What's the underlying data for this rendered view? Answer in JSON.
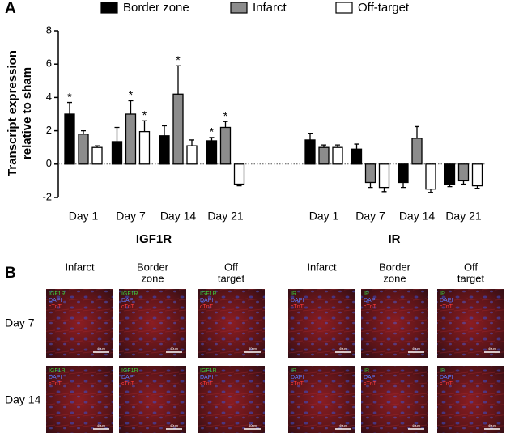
{
  "chart_data": {
    "type": "bar",
    "panel_label": "A",
    "ylabel": [
      "Transcript expression",
      "relative to sham"
    ],
    "categories": [
      "Day 1",
      "Day 7",
      "Day 14",
      "Day 21",
      "Day 1",
      "Day 7",
      "Day 14",
      "Day 21"
    ],
    "group_labels": [
      "IGF1R",
      "IR"
    ],
    "series": [
      {
        "name": "Border zone",
        "color": "#000000",
        "values": [
          3.0,
          1.35,
          1.7,
          1.4,
          1.45,
          0.9,
          -1.1,
          -1.2
        ],
        "errors": [
          0.7,
          0.85,
          0.6,
          0.2,
          0.4,
          0.3,
          0.3,
          0.15
        ],
        "significant": [
          true,
          false,
          false,
          true,
          false,
          false,
          false,
          false
        ]
      },
      {
        "name": "Infarct",
        "color": "#8c8c8c",
        "values": [
          1.8,
          3.0,
          4.2,
          2.2,
          1.0,
          -1.1,
          1.55,
          -1.0
        ],
        "errors": [
          0.2,
          0.8,
          1.7,
          0.35,
          0.15,
          0.3,
          0.7,
          0.2
        ],
        "significant": [
          false,
          true,
          true,
          true,
          false,
          false,
          false,
          false
        ]
      },
      {
        "name": "Off-target",
        "color": "#ffffff",
        "values": [
          1.0,
          1.95,
          1.1,
          -1.2,
          1.0,
          -1.4,
          -1.5,
          -1.3
        ],
        "errors": [
          0.1,
          0.65,
          0.35,
          0.1,
          0.15,
          0.25,
          0.2,
          0.15
        ],
        "significant": [
          false,
          true,
          false,
          false,
          false,
          false,
          false,
          false
        ]
      }
    ],
    "significance_marker": "*",
    "ylim": [
      -2,
      8
    ],
    "yticks": [
      -2,
      0,
      2,
      4,
      6,
      8
    ]
  },
  "micrographs": {
    "panel_label": "B",
    "rows": [
      "Day 7",
      "Day 14"
    ],
    "scale_bar": "40um",
    "sets": [
      {
        "columns": [
          [
            "Infarct"
          ],
          [
            "Border",
            "zone"
          ],
          [
            "Off",
            "target"
          ]
        ],
        "stains": [
          "IGF1R",
          "DAPI",
          "cTnT"
        ]
      },
      {
        "columns": [
          [
            "Infarct"
          ],
          [
            "Border",
            "zone"
          ],
          [
            "Off",
            "target"
          ]
        ],
        "stains": [
          "IR",
          "DAPI",
          "cTnT"
        ]
      }
    ]
  }
}
